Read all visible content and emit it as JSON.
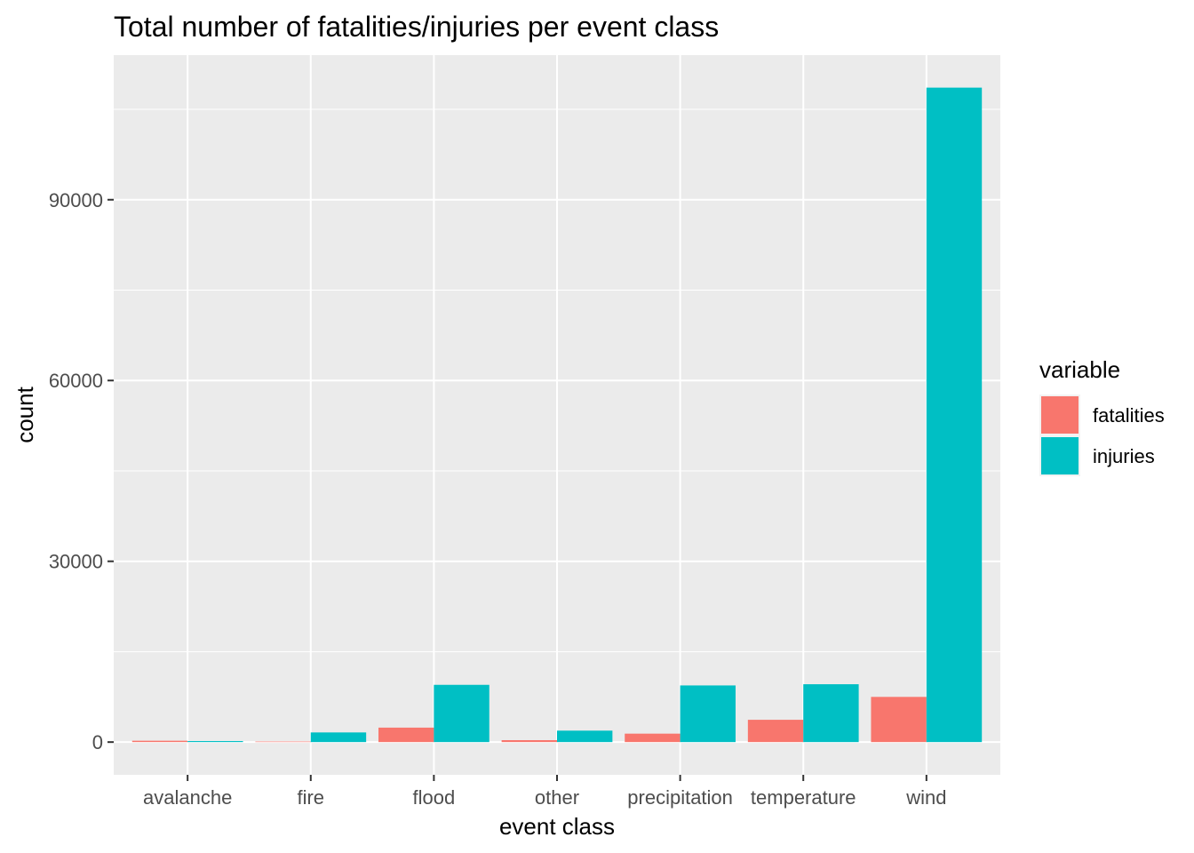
{
  "chart_data": {
    "type": "bar",
    "title": "Total number of fatalities/injuries per event class",
    "xlabel": "event class",
    "ylabel": "count",
    "categories": [
      "avalanche",
      "fire",
      "flood",
      "other",
      "precipitation",
      "temperature",
      "wind"
    ],
    "series": [
      {
        "name": "fatalities",
        "color": "#F8766D",
        "values": [
          225,
          90,
          2400,
          320,
          1400,
          3700,
          7500
        ]
      },
      {
        "name": "injuries",
        "color": "#00BFC4",
        "values": [
          170,
          1600,
          9500,
          1900,
          9400,
          9600,
          108600
        ]
      }
    ],
    "ylim": [
      -5430,
      114000
    ],
    "yticks": [
      0,
      30000,
      60000,
      90000
    ],
    "ytick_labels": [
      "0",
      "30000",
      "60000",
      "90000"
    ],
    "grid": true,
    "panel_background": "#EBEBEB",
    "legend": {
      "title": "variable",
      "position": "right"
    }
  }
}
